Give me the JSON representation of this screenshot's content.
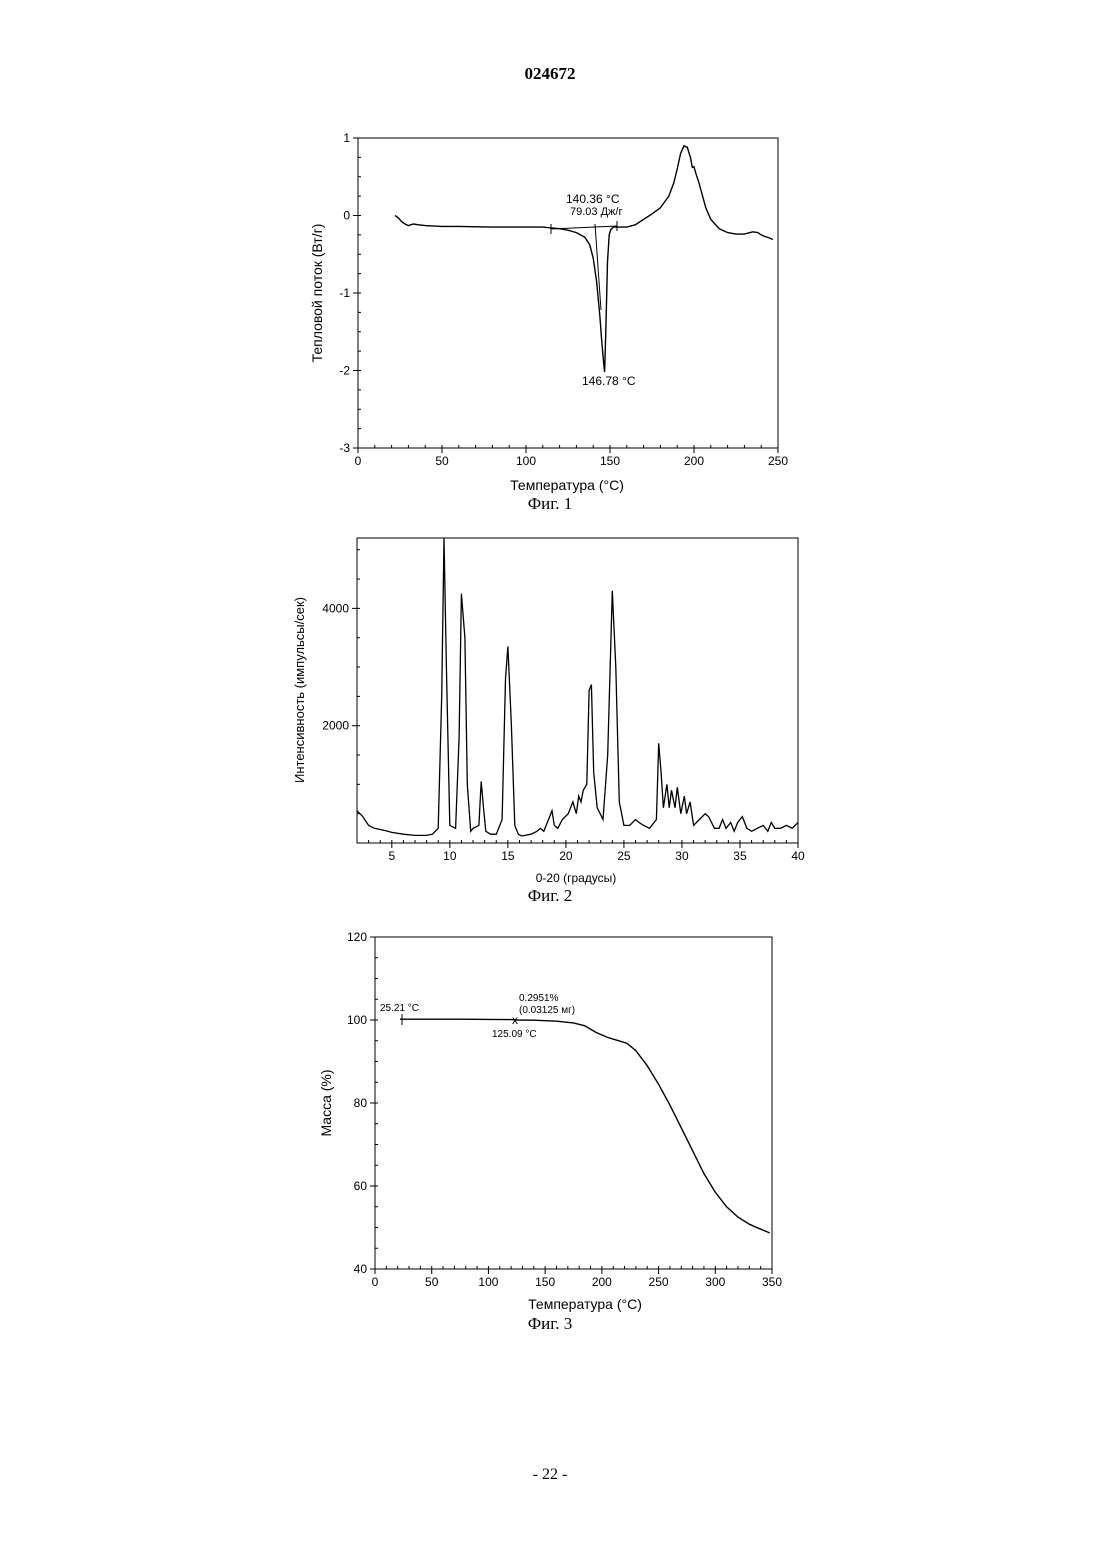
{
  "page": {
    "number": "024672",
    "footer": "- 22 -"
  },
  "chart_data": [
    {
      "type": "line",
      "caption": "Фиг. 1",
      "xlabel": "Температура (°C)",
      "ylabel": "Тепловой поток (Вт/г)",
      "xlim": [
        0,
        250
      ],
      "ylim": [
        -3,
        1
      ],
      "xticks": [
        "0",
        "50",
        "100",
        "150",
        "200",
        "250"
      ],
      "yticks": [
        "-3",
        "-2",
        "-1",
        "0",
        "1"
      ],
      "annotations": [
        "140.36 °C",
        "79.03 Дж/г",
        "146.78 °C"
      ],
      "series": [
        {
          "x": [
            22,
            24,
            26,
            28,
            30,
            33,
            36,
            40,
            50,
            60,
            80,
            100,
            110,
            115,
            120,
            125,
            130,
            135,
            138,
            140,
            142,
            144,
            145,
            146,
            146.78,
            147.5,
            148.5,
            149.5,
            150.5,
            152,
            155,
            160,
            165,
            170,
            175,
            180,
            185,
            188,
            190,
            192,
            194,
            196,
            198,
            199,
            200,
            201,
            203,
            205,
            207,
            210,
            215,
            220,
            225,
            230,
            235,
            238,
            240,
            242,
            245,
            247
          ],
          "y": [
            0.0,
            -0.03,
            -0.08,
            -0.11,
            -0.13,
            -0.11,
            -0.12,
            -0.13,
            -0.14,
            -0.14,
            -0.15,
            -0.15,
            -0.15,
            -0.16,
            -0.17,
            -0.19,
            -0.22,
            -0.28,
            -0.38,
            -0.55,
            -0.85,
            -1.3,
            -1.6,
            -1.85,
            -2.02,
            -1.5,
            -0.6,
            -0.25,
            -0.18,
            -0.15,
            -0.15,
            -0.15,
            -0.12,
            -0.05,
            0.02,
            0.1,
            0.25,
            0.42,
            0.6,
            0.8,
            0.9,
            0.88,
            0.74,
            0.62,
            0.63,
            0.55,
            0.42,
            0.26,
            0.1,
            -0.05,
            -0.17,
            -0.22,
            -0.24,
            -0.24,
            -0.21,
            -0.22,
            -0.25,
            -0.27,
            -0.29,
            -0.31
          ]
        }
      ]
    },
    {
      "type": "line",
      "caption": "Фиг. 2",
      "xlabel": "0-20 (градусы)",
      "ylabel": "Интенсивность (импульсы/сек)",
      "xlim": [
        2,
        40
      ],
      "ylim": [
        0,
        5200
      ],
      "xticks": [
        "5",
        "10",
        "15",
        "20",
        "25",
        "30",
        "35",
        "40"
      ],
      "yticks": [
        "2000",
        "4000"
      ],
      "series": [
        {
          "x": [
            2,
            2.5,
            3,
            3.5,
            4,
            4.5,
            5,
            6,
            7,
            8,
            8.5,
            9,
            9.3,
            9.5,
            9.7,
            10,
            10.5,
            10.8,
            11,
            11.3,
            11.5,
            11.8,
            12,
            12.5,
            12.7,
            12.9,
            13.1,
            13.5,
            14,
            14.5,
            14.8,
            15,
            15.3,
            15.6,
            15.9,
            16.2,
            17,
            17.5,
            17.8,
            18.1,
            18.5,
            18.8,
            19,
            19.3,
            19.7,
            20.2,
            20.6,
            20.9,
            21.1,
            21.3,
            21.5,
            21.8,
            22,
            22.2,
            22.4,
            22.7,
            23.2,
            23.6,
            24,
            24.3,
            24.6,
            25,
            25.5,
            26,
            26.3,
            26.7,
            27.2,
            27.8,
            28,
            28.2,
            28.4,
            28.7,
            28.9,
            29.1,
            29.4,
            29.6,
            29.9,
            30.2,
            30.4,
            30.7,
            31,
            31.5,
            32,
            32.3,
            32.8,
            33.2,
            33.5,
            33.8,
            34.2,
            34.5,
            34.8,
            35.2,
            35.6,
            36,
            36.5,
            37,
            37.4,
            37.7,
            38,
            38.5,
            39,
            39.5,
            40
          ],
          "y": [
            550,
            450,
            300,
            250,
            230,
            210,
            180,
            150,
            130,
            130,
            150,
            250,
            2500,
            5200,
            3000,
            300,
            250,
            1800,
            4250,
            3500,
            1000,
            200,
            250,
            300,
            1050,
            600,
            200,
            150,
            150,
            400,
            2800,
            3350,
            2000,
            300,
            150,
            120,
            150,
            200,
            250,
            200,
            400,
            550,
            300,
            250,
            400,
            500,
            700,
            500,
            800,
            700,
            900,
            1000,
            2600,
            2700,
            1200,
            600,
            400,
            1500,
            4300,
            3000,
            700,
            300,
            300,
            400,
            350,
            300,
            250,
            400,
            1700,
            1200,
            600,
            1000,
            600,
            900,
            600,
            950,
            500,
            800,
            500,
            700,
            300,
            400,
            500,
            450,
            250,
            250,
            400,
            250,
            350,
            200,
            350,
            450,
            250,
            200,
            250,
            300,
            200,
            350,
            250,
            250,
            300,
            250,
            350
          ]
        }
      ]
    },
    {
      "type": "line",
      "caption": "Фиг. 3",
      "xlabel": "Температура (°C)",
      "ylabel": "Масса (%)",
      "xlim": [
        0,
        350
      ],
      "ylim": [
        40,
        120
      ],
      "xticks": [
        "0",
        "50",
        "100",
        "150",
        "200",
        "250",
        "300",
        "350"
      ],
      "yticks": [
        "40",
        "60",
        "80",
        "100",
        "120"
      ],
      "annotations": [
        "25.21 °C",
        "0.2951%",
        "(0.03125 мг)",
        "125.09 °C"
      ],
      "series": [
        {
          "x": [
            22,
            25.21,
            50,
            75,
            100,
            120,
            125.09,
            140,
            160,
            175,
            185,
            195,
            205,
            215,
            222,
            230,
            240,
            250,
            260,
            270,
            280,
            290,
            300,
            310,
            320,
            330,
            340,
            348
          ],
          "y": [
            100.2,
            100.2,
            100.2,
            100.2,
            100.15,
            100.1,
            100.0,
            99.95,
            99.7,
            99.3,
            98.6,
            97.0,
            95.8,
            95.0,
            94.4,
            92.6,
            89.0,
            84.5,
            79.5,
            74.0,
            68.5,
            63.0,
            58.5,
            55.0,
            52.5,
            50.8,
            49.6,
            48.7
          ]
        }
      ]
    }
  ]
}
